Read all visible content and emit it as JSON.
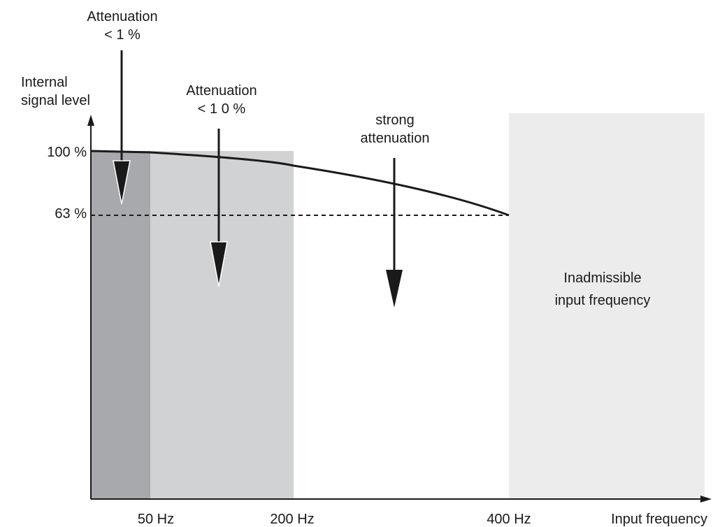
{
  "labels": {
    "y_axis_line1": "Internal",
    "y_axis_line2": "signal level",
    "x_axis": "Input frequency",
    "y_tick_100": "100 %",
    "y_tick_63": "63 %",
    "x_tick_50": "50 Hz",
    "x_tick_200": "200 Hz",
    "x_tick_400": "400 Hz"
  },
  "annotations": {
    "att1_line1": "Attenuation",
    "att1_line2": "< 1 %",
    "att2_line1": "Attenuation",
    "att2_line2": "< 1 0 %",
    "att3_line1": "strong",
    "att3_line2": "attenuation",
    "inadmissible_line1": "Inadmissible",
    "inadmissible_line2": "input frequency"
  },
  "colors": {
    "band_dark": "#a8a9ad",
    "band_medium": "#d1d2d4",
    "band_light": "#ececed",
    "ink": "#1a1a1a"
  }
}
